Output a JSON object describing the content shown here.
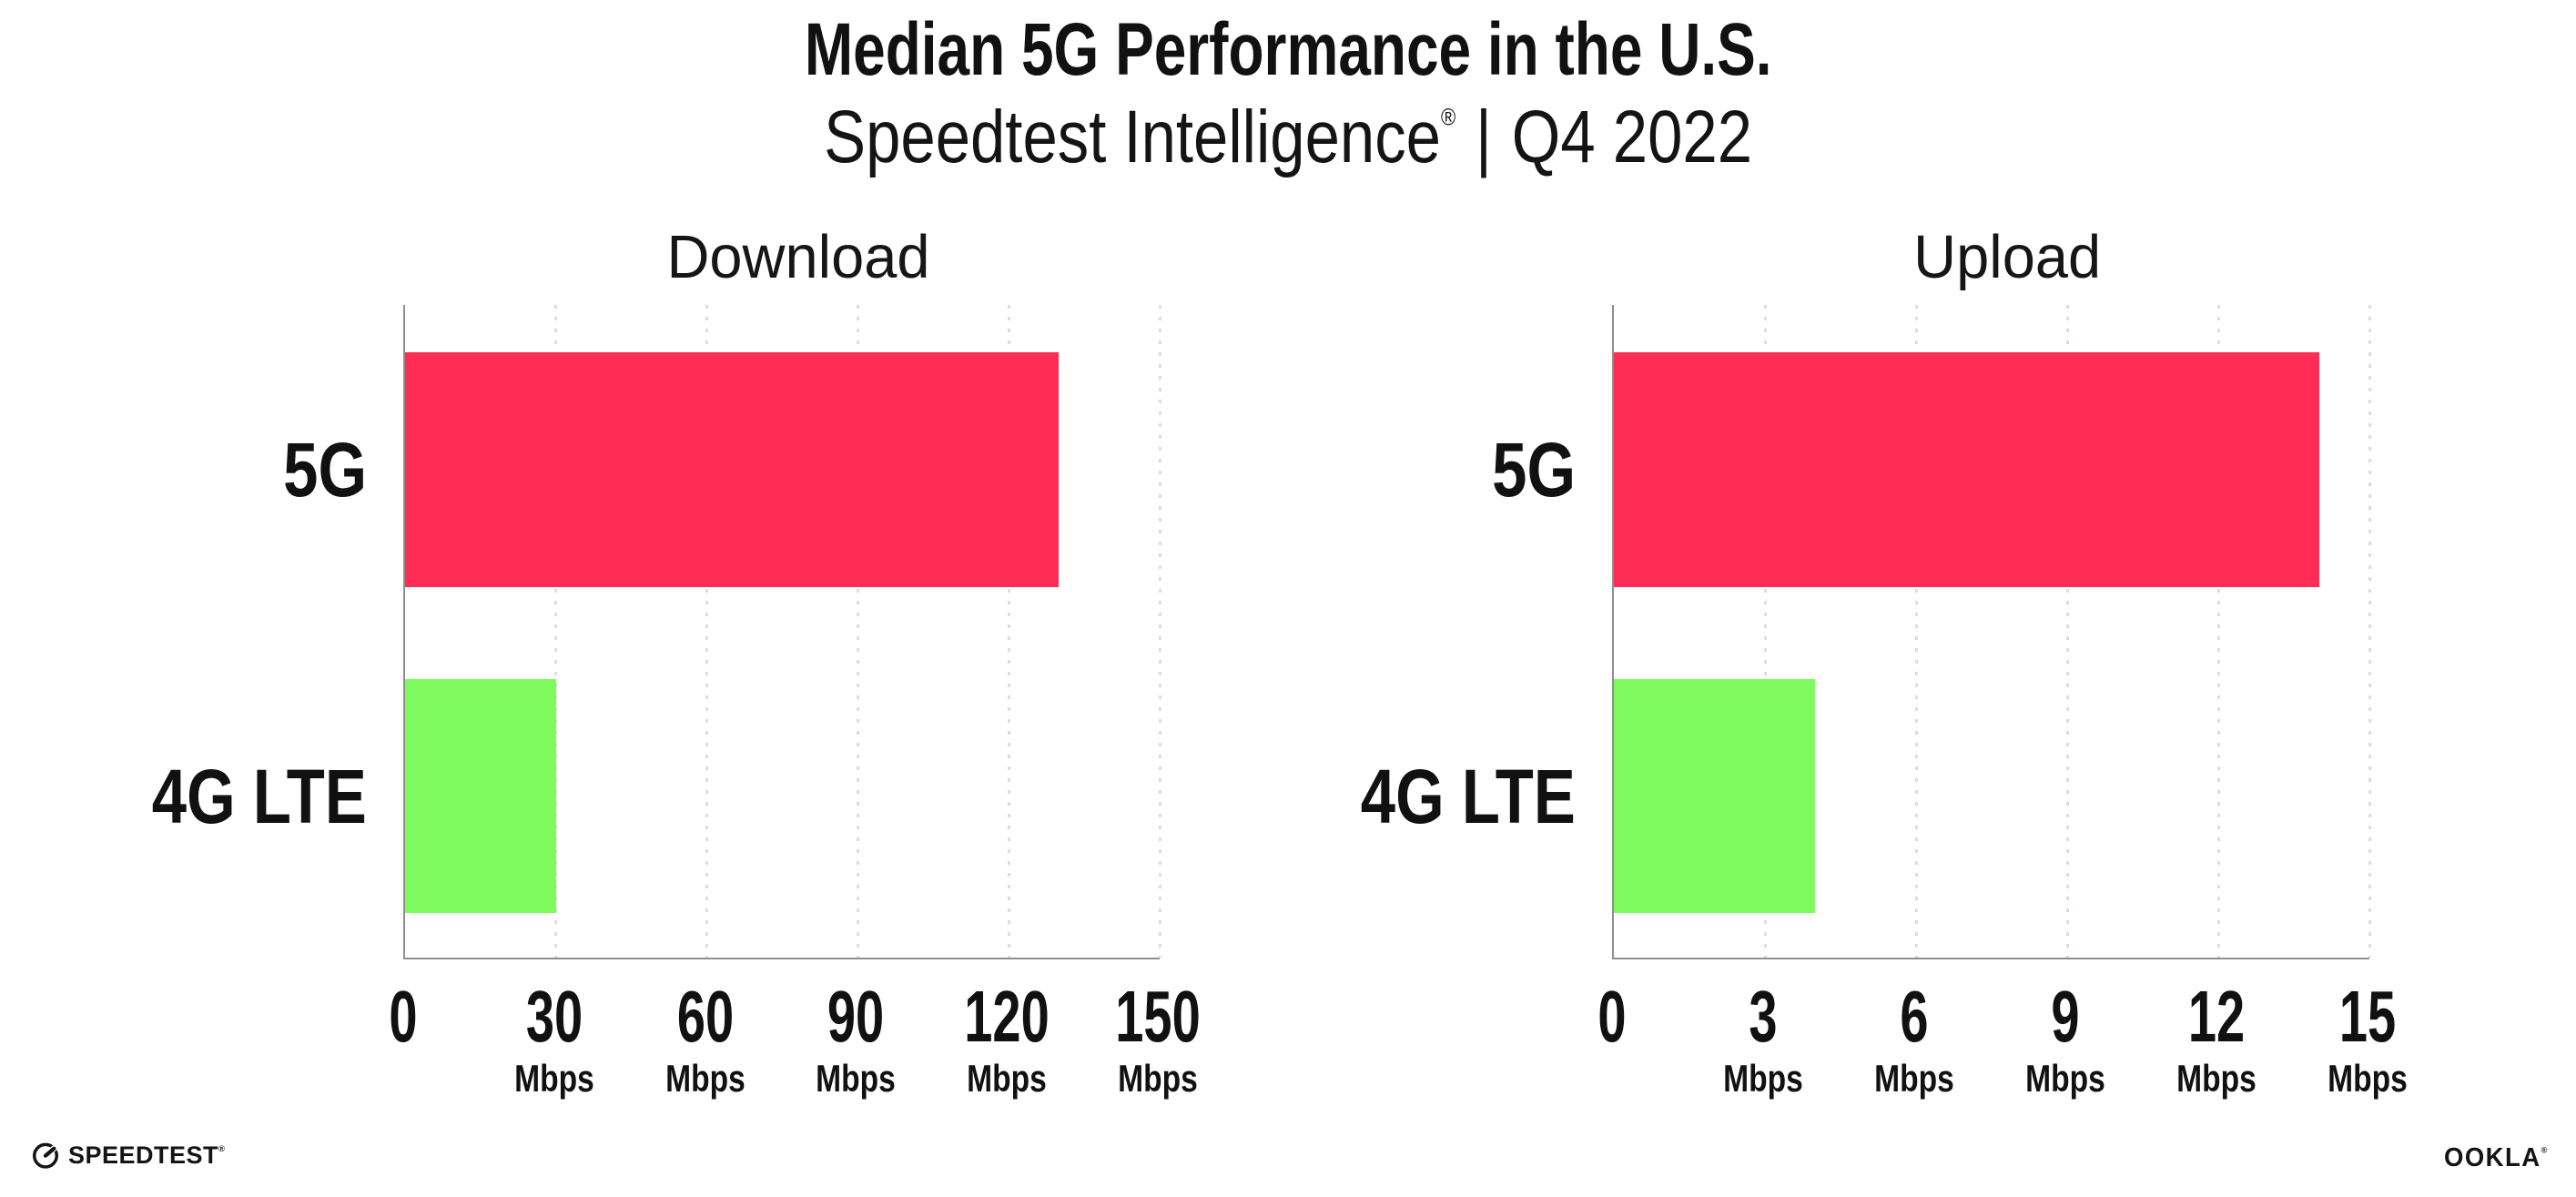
{
  "header": {
    "title": "Median 5G Performance in the U.S.",
    "subtitle_brand": "Speedtest Intelligence",
    "subtitle_registered": "®",
    "subtitle_separator": "|",
    "subtitle_period": "Q4 2022"
  },
  "chart_data": [
    {
      "type": "bar",
      "orientation": "horizontal",
      "title": "Download",
      "categories": [
        "5G",
        "4G LTE"
      ],
      "values": [
        130,
        30
      ],
      "unit": "Mbps",
      "xlabel": "",
      "ylabel": "",
      "xlim": [
        0,
        150
      ],
      "xticks": [
        0,
        30,
        60,
        90,
        120,
        150
      ],
      "bar_colors": [
        "#FF2D55",
        "#7EFA5E"
      ],
      "grid": "vertical dotted gridlines at each tick",
      "legend_position": "none"
    },
    {
      "type": "bar",
      "orientation": "horizontal",
      "title": "Upload",
      "categories": [
        "5G",
        "4G LTE"
      ],
      "values": [
        14,
        4
      ],
      "unit": "Mbps",
      "xlabel": "",
      "ylabel": "",
      "xlim": [
        0,
        15
      ],
      "xticks": [
        0,
        3,
        6,
        9,
        12,
        15
      ],
      "bar_colors": [
        "#FF2D55",
        "#7EFA5E"
      ],
      "grid": "vertical dotted gridlines at each tick",
      "legend_position": "none"
    }
  ],
  "footer": {
    "speedtest_wordmark": "SPEEDTEST",
    "speedtest_trademark": "®",
    "ookla_wordmark": "OOKLA",
    "ookla_trademark": "®"
  },
  "colors": {
    "bar_5g": "#FF2D55",
    "bar_4g": "#7EFA5E",
    "axis": "#8F8F8F",
    "gridline": "#DCDCE6",
    "text": "#111111",
    "background": "#FFFFFF"
  }
}
